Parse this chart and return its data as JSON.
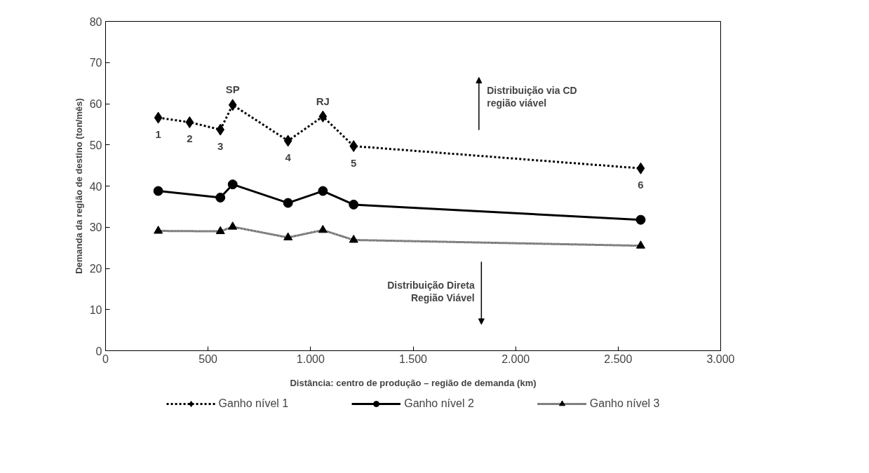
{
  "chart_data": {
    "type": "line",
    "xlabel": "Distância: centro de produção – região de demanda (km)",
    "ylabel": "Demanda da região de destino (ton/mês)",
    "xlim": [
      0,
      3000
    ],
    "ylim": [
      0,
      80
    ],
    "xticks": [
      0,
      {
        "value": 500,
        "label": "500"
      },
      {
        "value": 1000,
        "label": "1.000"
      },
      {
        "value": 1500,
        "label": "1.500"
      },
      {
        "value": 2000,
        "label": "2.000"
      },
      {
        "value": 2500,
        "label": "2.500"
      },
      {
        "value": 3000,
        "label": "3.000"
      }
    ],
    "yticks": [
      0,
      10,
      20,
      30,
      40,
      50,
      60,
      70,
      80
    ],
    "grid": false,
    "legend": "bottom",
    "series": [
      {
        "name": "Ganho nível 1",
        "color": "#000000",
        "marker": "diamond",
        "line_style": "dashed",
        "x": [
          257,
          410,
          560,
          620,
          890,
          1060,
          1210,
          2610
        ],
        "values": [
          56.6,
          55.5,
          53.7,
          59.7,
          51.0,
          56.9,
          49.7,
          44.3
        ]
      },
      {
        "name": "Ganho nível 2",
        "color": "#000000",
        "marker": "circle",
        "line_style": "solid",
        "x": [
          257,
          560,
          620,
          890,
          1060,
          1210,
          2610
        ],
        "values": [
          38.8,
          37.2,
          40.4,
          35.9,
          38.8,
          35.5,
          31.8
        ]
      },
      {
        "name": "Ganho nível 3",
        "color": "#000000",
        "marker": "triangle",
        "line_style": "dotted",
        "x": [
          257,
          560,
          620,
          890,
          1060,
          1210,
          2610
        ],
        "values": [
          29.1,
          29.0,
          30.1,
          27.5,
          29.3,
          26.9,
          25.5
        ]
      }
    ],
    "annotations": [
      {
        "text": "1",
        "x": 257,
        "y": 56.6
      },
      {
        "text": "2",
        "x": 410,
        "y": 55.5
      },
      {
        "text": "3",
        "x": 560,
        "y": 53.7
      },
      {
        "text": "4",
        "x": 890,
        "y": 51.0
      },
      {
        "text": "5",
        "x": 1210,
        "y": 49.7
      },
      {
        "text": "6",
        "x": 2610,
        "y": 44.3
      },
      {
        "text": "SP",
        "x": 620,
        "y": 59.7
      },
      {
        "text": "RJ",
        "x": 1060,
        "y": 56.9
      },
      "Distribuição via CD\nregião viável",
      "Distribuição Direta\nRegião Viável"
    ]
  }
}
